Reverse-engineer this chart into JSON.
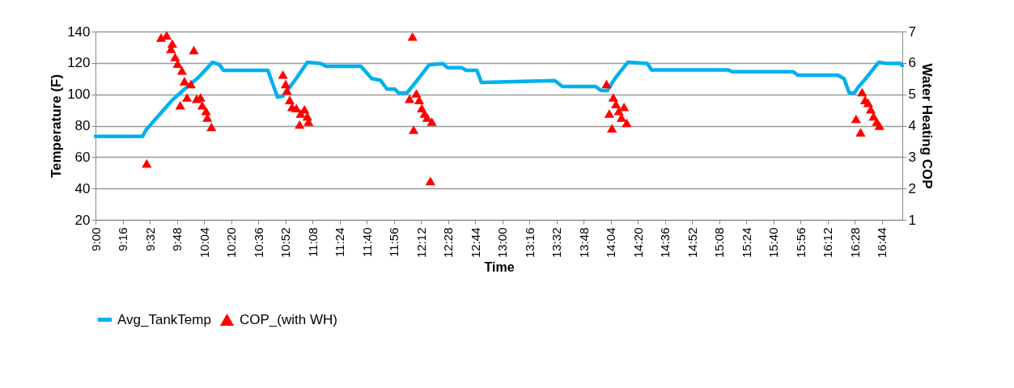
{
  "chart_data": {
    "type": "line",
    "xlabel": "Time",
    "ylabel": "Temperature (F)",
    "y2label": "Water Heating COP",
    "xlim": [
      9,
      16.9333
    ],
    "xticks": [
      {
        "value": 9,
        "label": "9:00"
      },
      {
        "value": 9.2667,
        "label": "9:16"
      },
      {
        "value": 9.5333,
        "label": "9:32"
      },
      {
        "value": 9.8,
        "label": "9:48"
      },
      {
        "value": 10.0667,
        "label": "10:04"
      },
      {
        "value": 10.3333,
        "label": "10:20"
      },
      {
        "value": 10.6,
        "label": "10:36"
      },
      {
        "value": 10.8667,
        "label": "10:52"
      },
      {
        "value": 11.1333,
        "label": "11:08"
      },
      {
        "value": 11.4,
        "label": "11:24"
      },
      {
        "value": 11.6667,
        "label": "11:40"
      },
      {
        "value": 11.9333,
        "label": "11:56"
      },
      {
        "value": 12.2,
        "label": "12:12"
      },
      {
        "value": 12.4667,
        "label": "12:28"
      },
      {
        "value": 12.7333,
        "label": "12:44"
      },
      {
        "value": 13,
        "label": "13:00"
      },
      {
        "value": 13.2667,
        "label": "13:16"
      },
      {
        "value": 13.5333,
        "label": "13:32"
      },
      {
        "value": 13.8,
        "label": "13:48"
      },
      {
        "value": 14.0667,
        "label": "14:04"
      },
      {
        "value": 14.3333,
        "label": "14:20"
      },
      {
        "value": 14.6,
        "label": "14:36"
      },
      {
        "value": 14.8667,
        "label": "14:52"
      },
      {
        "value": 15.1333,
        "label": "15:08"
      },
      {
        "value": 15.4,
        "label": "15:24"
      },
      {
        "value": 15.6667,
        "label": "15:40"
      },
      {
        "value": 15.9333,
        "label": "15:56"
      },
      {
        "value": 16.2,
        "label": "16:12"
      },
      {
        "value": 16.4667,
        "label": "16:28"
      },
      {
        "value": 16.7333,
        "label": "16:44"
      }
    ],
    "ylim": [
      20,
      140
    ],
    "yticks": [
      20,
      40,
      60,
      80,
      100,
      120,
      140
    ],
    "y2lim": [
      1,
      7
    ],
    "y2ticks": [
      1,
      2,
      3,
      4,
      5,
      6,
      7
    ],
    "grid": "y",
    "legend": "bottom",
    "series": [
      {
        "name": "Avg_TankTemp",
        "type": "line",
        "color": "#00b0f0",
        "marker": "none",
        "line_style": "solid",
        "x": [
          9.0,
          9.463,
          9.5,
          9.755,
          9.86,
          10.017,
          10.15,
          10.217,
          10.258,
          10.695,
          10.79,
          10.845,
          10.973,
          11.083,
          11.212,
          11.267,
          11.61,
          11.717,
          11.8,
          11.867,
          11.943,
          11.983,
          12.063,
          12.127,
          12.283,
          12.417,
          12.46,
          12.6,
          12.643,
          12.75,
          12.795,
          13.517,
          13.59,
          13.917,
          13.972,
          14.033,
          14.107,
          14.233,
          14.425,
          14.467,
          15.217,
          15.262,
          15.858,
          15.907,
          16.3,
          16.36,
          16.412,
          16.462,
          16.493,
          16.573,
          16.7,
          16.783,
          16.917,
          16.933
        ],
        "values": [
          73.2,
          73.2,
          77.6,
          96.3,
          102.4,
          111,
          120.4,
          119,
          115.3,
          115.3,
          98.2,
          99,
          110,
          120.4,
          119.6,
          117.8,
          117.8,
          110,
          109,
          103.3,
          103.3,
          100.8,
          101,
          106,
          118.9,
          119.5,
          117,
          117,
          115.3,
          115.3,
          107.5,
          108.7,
          105,
          105,
          102.4,
          102.4,
          110,
          120.4,
          119.6,
          115.6,
          115.6,
          114.4,
          114.4,
          112.2,
          112.2,
          110,
          100.8,
          100.8,
          104,
          110,
          120.4,
          119.6,
          119.6,
          118.3
        ]
      },
      {
        "name": "COP_(with WH)",
        "type": "scatter",
        "axis": "y2",
        "color": "#ff0000",
        "marker": "triangle",
        "x": [
          9.503,
          9.645,
          9.7,
          9.742,
          9.755,
          9.783,
          9.808,
          9.833,
          9.85,
          9.875,
          9.9,
          9.938,
          9.967,
          9.995,
          10.033,
          10.05,
          10.087,
          10.1,
          10.14,
          10.843,
          10.87,
          10.883,
          10.91,
          10.933,
          10.975,
          11.007,
          11.017,
          11.055,
          11.083,
          11.095,
          12.088,
          12.117,
          12.128,
          12.155,
          12.183,
          12.208,
          12.235,
          12.262,
          12.293,
          12.307,
          14.025,
          14.052,
          14.078,
          14.092,
          14.117,
          14.145,
          14.172,
          14.197,
          14.223,
          16.478,
          16.523,
          16.538,
          16.567,
          16.597,
          16.623,
          16.65,
          16.683,
          16.708
        ],
        "values": [
          2.8,
          6.81,
          6.88,
          6.45,
          6.62,
          6.19,
          5.98,
          4.65,
          5.76,
          5.42,
          4.9,
          5.33,
          6.41,
          4.86,
          4.9,
          4.65,
          4.47,
          4.26,
          3.96,
          5.63,
          5.33,
          5.12,
          4.82,
          4.6,
          4.56,
          4.04,
          4.39,
          4.52,
          4.3,
          4.13,
          4.86,
          6.84,
          3.87,
          5.03,
          4.82,
          4.56,
          4.39,
          4.26,
          2.24,
          4.13,
          5.33,
          4.39,
          3.92,
          4.9,
          4.69,
          4.47,
          4.26,
          4.6,
          4.09,
          4.22,
          3.79,
          5.07,
          4.82,
          4.73,
          4.52,
          4.3,
          4.13,
          4.0
        ]
      }
    ]
  }
}
